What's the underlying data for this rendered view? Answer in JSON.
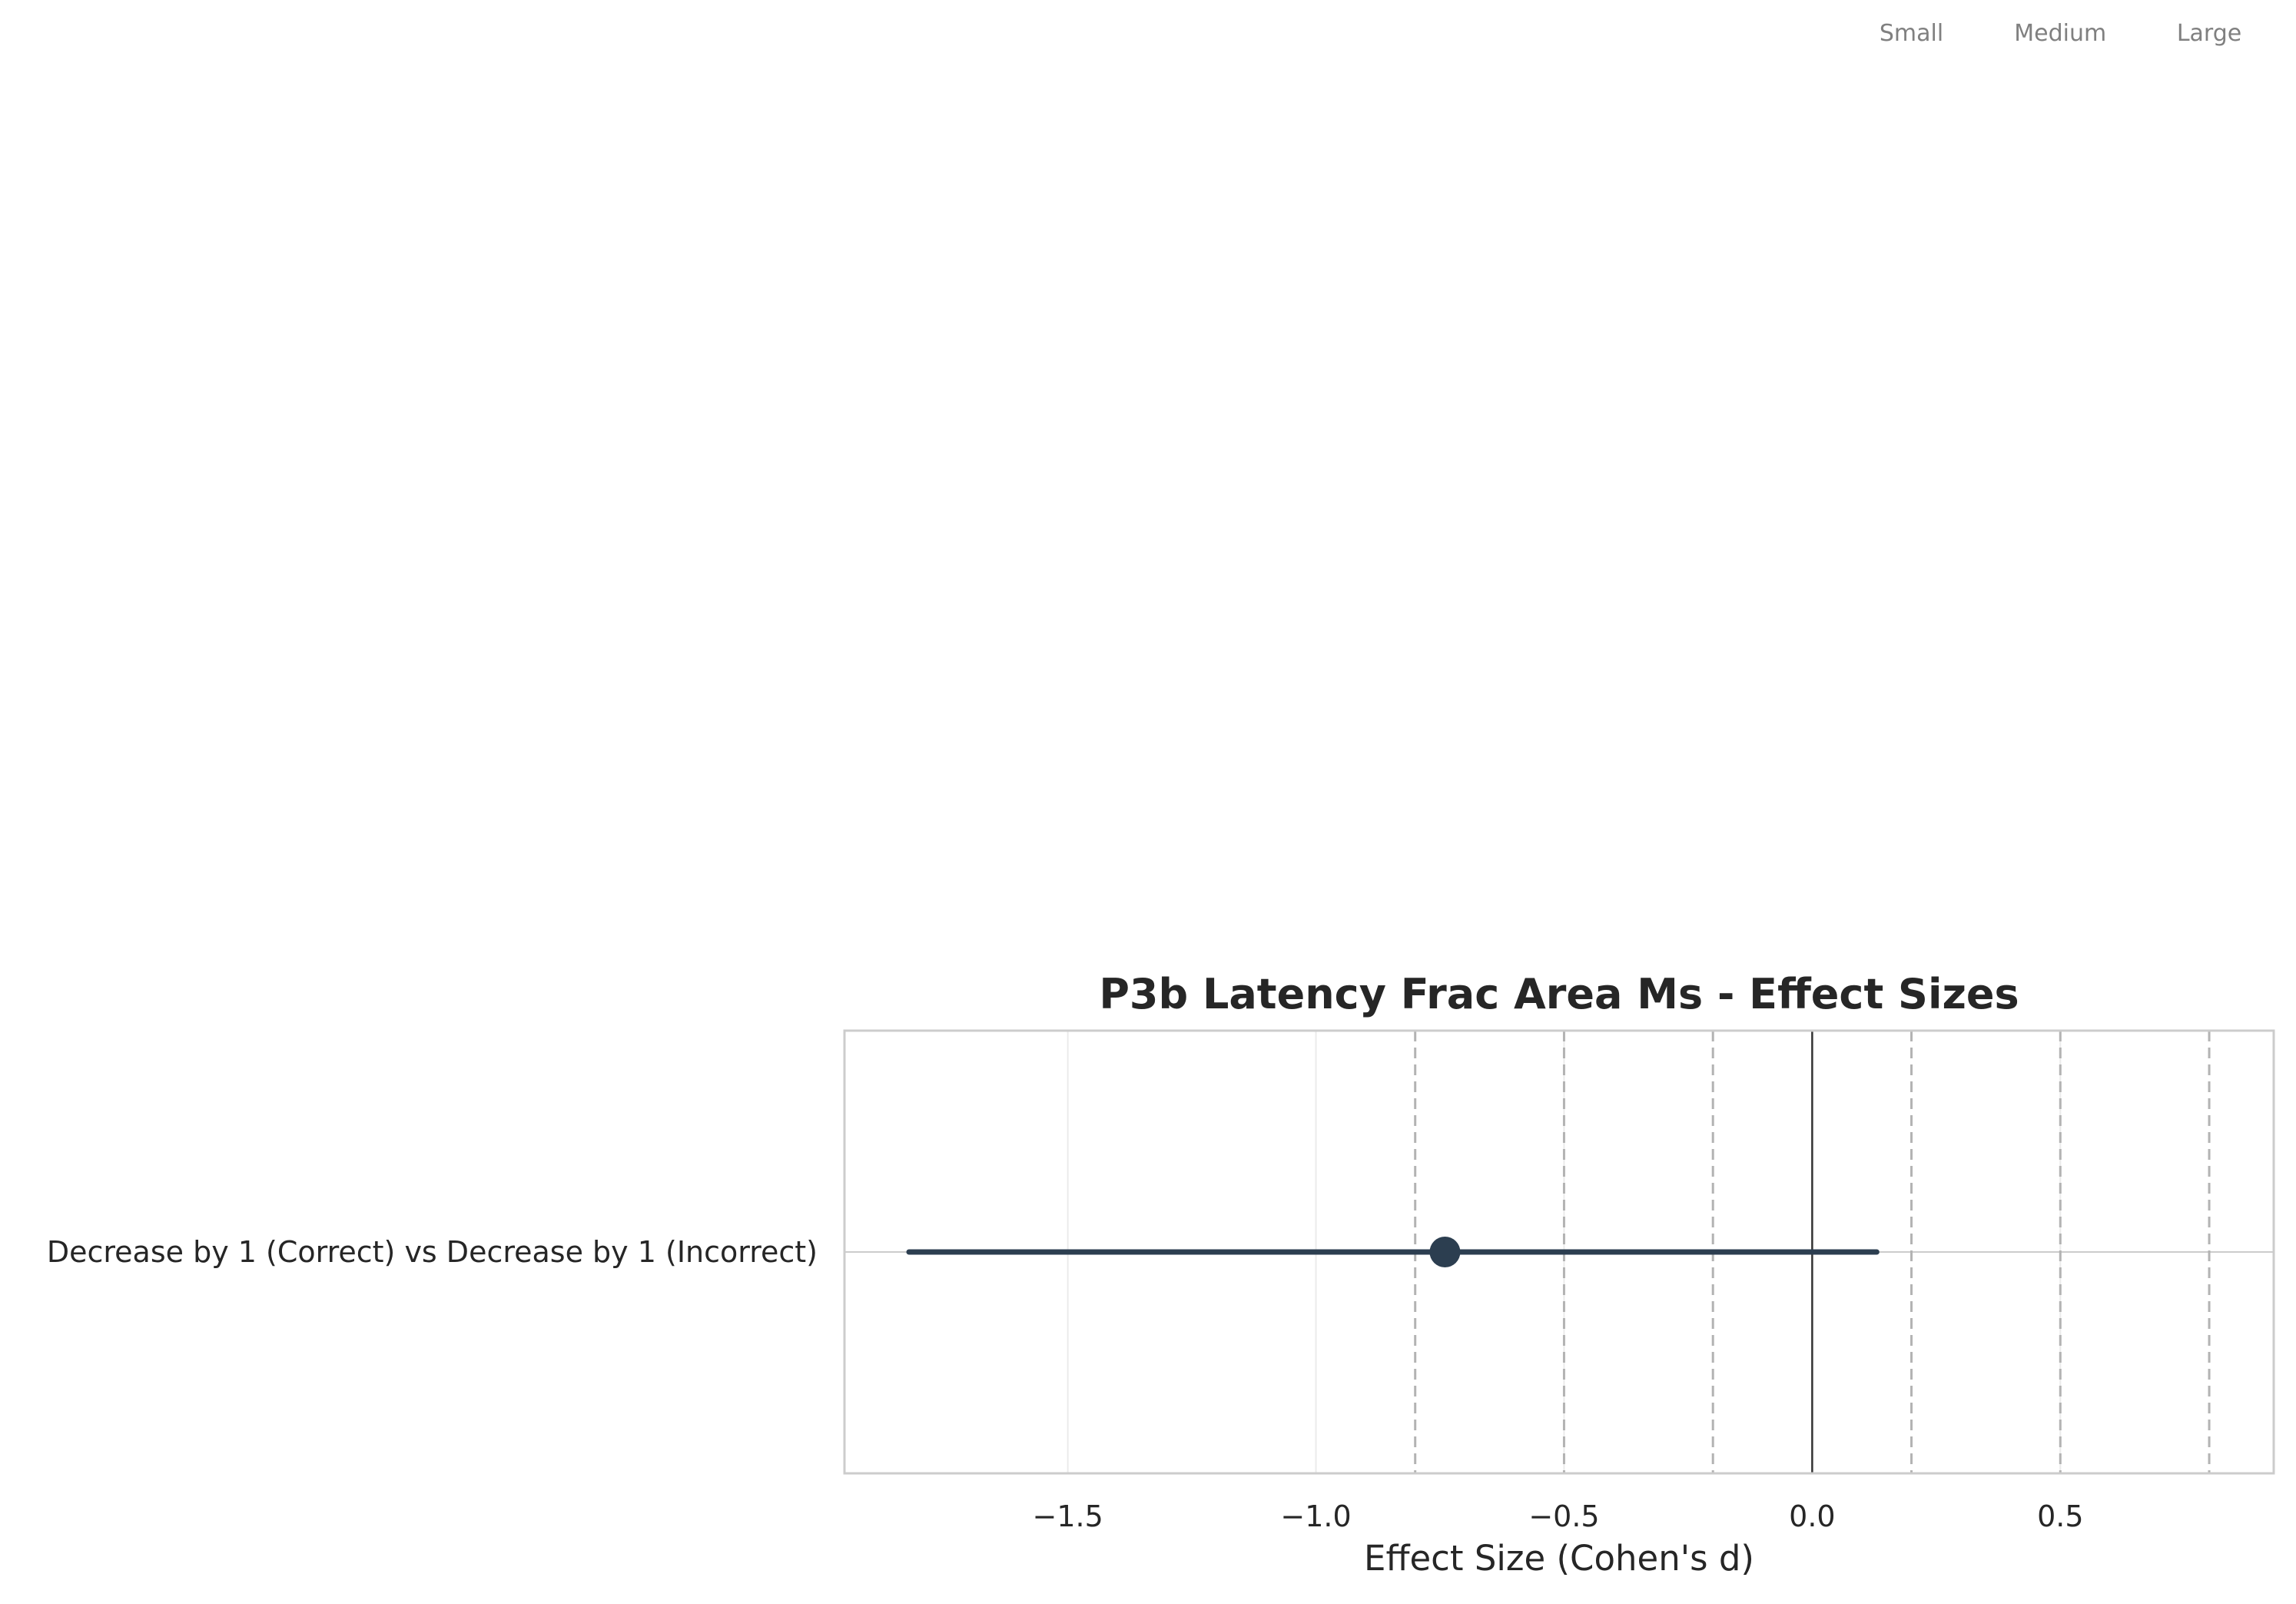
{
  "chart_data": {
    "type": "forest",
    "title": "P3b Latency Frac Area Ms - Effect Sizes",
    "xlabel": "Effect Size (Cohen's d)",
    "xlim": [
      -1.95,
      0.93
    ],
    "xticks": [
      -1.5,
      -1.0,
      -0.5,
      0.0,
      0.5
    ],
    "xtick_labels": [
      "−1.5",
      "−1.0",
      "−0.5",
      "0.0",
      "0.5"
    ],
    "grid": true,
    "reference_line": 0.0,
    "threshold_lines": [
      -0.8,
      -0.5,
      -0.2,
      0.2,
      0.5,
      0.8
    ],
    "effect_size_labels": [
      {
        "label": "Small",
        "value": 0.2
      },
      {
        "label": "Medium",
        "value": 0.5
      },
      {
        "label": "Large",
        "value": 0.8
      }
    ],
    "rows": [
      {
        "label": "Decrease by 1 (Correct) vs Decrease by 1 (Incorrect)",
        "estimate": -0.74,
        "ci_low": -1.82,
        "ci_high": 0.13
      }
    ],
    "colors": {
      "marker": "#2c3e50",
      "zero_line": "#333333",
      "threshold_line": "#b3b3b3",
      "grid": "#ebebeb",
      "frame": "#cccccc"
    }
  }
}
